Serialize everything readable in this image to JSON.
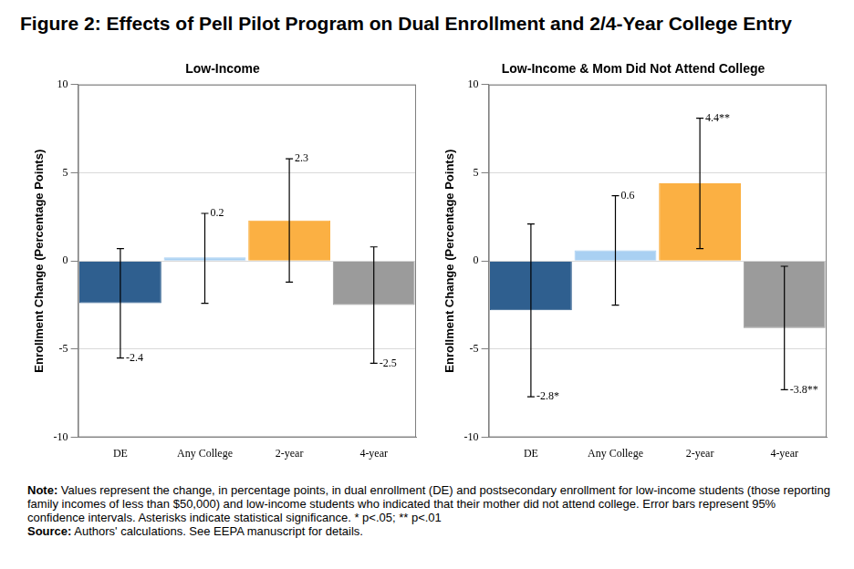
{
  "figure_title": "Figure 2: Effects of Pell Pilot Program on Dual Enrollment and 2/4-Year College Entry",
  "note": {
    "label": "Note:",
    "text": "Values represent the change, in percentage points, in dual enrollment (DE) and postsecondary enrollment for low-income students (those reporting family incomes of less than $50,000) and low-income students who indicated that their mother did not attend college. Error bars represent 95% confidence intervals. Asterisks indicate statistical significance. * p<.05; ** p<.01"
  },
  "source": {
    "label": "Source:",
    "text": "Authors' calculations. See EEPA manuscript for details."
  },
  "chart_data": [
    {
      "type": "bar",
      "title": "Low-Income",
      "y_label": "Enrollment Change (Percentage Points)",
      "categories": [
        "DE",
        "Any College",
        "2-year",
        "4-year"
      ],
      "values": [
        -2.4,
        0.2,
        2.3,
        -2.5
      ],
      "error_bars": [
        [
          -5.5,
          0.7
        ],
        [
          -2.4,
          2.7
        ],
        [
          -1.2,
          5.8
        ],
        [
          -5.8,
          0.8
        ]
      ],
      "colors": [
        "#2f5f8f",
        "#a9d0f2",
        "#fbb043",
        "#9b9b9b"
      ],
      "ylim": [
        -10,
        10
      ],
      "yticks": [
        -10,
        -5,
        0,
        5,
        10
      ],
      "grid": true,
      "data_labels": true
    },
    {
      "type": "bar",
      "title": "Low-Income & Mom Did Not Attend College",
      "y_label": "Enrollment Change (Percentage Points)",
      "categories": [
        "DE",
        "Any College",
        "2-year",
        "4-year"
      ],
      "values": [
        -2.8,
        0.6,
        4.4,
        -3.8
      ],
      "value_labels": [
        "-2.8*",
        "0.6",
        "4.4**",
        "-3.8**"
      ],
      "error_bars": [
        [
          -7.7,
          2.1
        ],
        [
          -2.5,
          3.7
        ],
        [
          0.7,
          8.1
        ],
        [
          -7.3,
          -0.3
        ]
      ],
      "colors": [
        "#2f5f8f",
        "#a9d0f2",
        "#fbb043",
        "#9b9b9b"
      ],
      "ylim": [
        -10,
        10
      ],
      "yticks": [
        -10,
        -5,
        0,
        5,
        10
      ],
      "grid": true,
      "data_labels": true
    }
  ]
}
